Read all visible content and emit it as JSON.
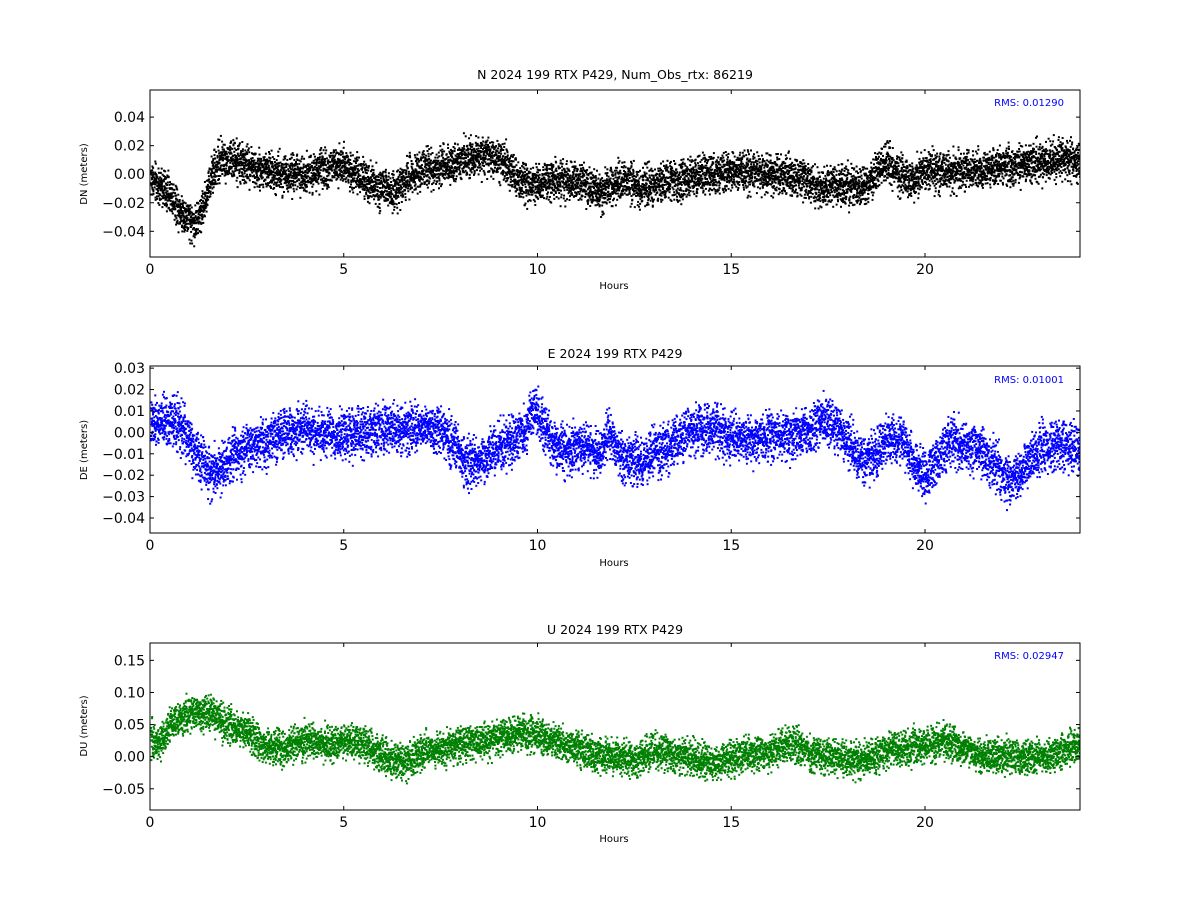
{
  "chart_data": [
    {
      "type": "scatter",
      "title": "N 2024 199 RTX  P429, Num_Obs_rtx: 86219",
      "xlabel": "Hours",
      "ylabel": "DN (meters)",
      "xlim": [
        0,
        24
      ],
      "ylim": [
        -0.058,
        0.059
      ],
      "xticks": [
        0,
        5,
        10,
        15,
        20
      ],
      "xtick_labels": [
        "0",
        "5",
        "10",
        "15",
        "20"
      ],
      "yticks": [
        -0.04,
        -0.02,
        0.0,
        0.02,
        0.04
      ],
      "ytick_labels": [
        "−0.04",
        "−0.02",
        "0.00",
        "0.02",
        "0.04"
      ],
      "color": "#000000",
      "annotation": "RMS:  0.01290",
      "grid": false,
      "series": [
        {
          "x": [
            0,
            0.25,
            0.5,
            0.75,
            1.0,
            1.15,
            1.35,
            1.6,
            1.8,
            2.0,
            2.3,
            2.6,
            3.0,
            3.5,
            4.0,
            4.5,
            4.8,
            5.0,
            5.3,
            5.6,
            6.0,
            6.25,
            6.6,
            7.0,
            7.5,
            8.0,
            8.5,
            8.9,
            9.2,
            9.5,
            9.8,
            10.0,
            10.2,
            10.5,
            11.0,
            11.3,
            11.6,
            12.0,
            12.3,
            12.6,
            13.0,
            13.5,
            14.0,
            14.5,
            15.0,
            15.5,
            16.0,
            16.5,
            17.0,
            17.3,
            17.6,
            18.0,
            18.5,
            18.8,
            19.0,
            19.3,
            19.6,
            20.0,
            20.5,
            21.0,
            21.5,
            22.0,
            22.5,
            23.0,
            23.3,
            23.6,
            24.0
          ],
          "y": [
            -0.003,
            -0.008,
            -0.014,
            -0.024,
            -0.032,
            -0.034,
            -0.022,
            0.003,
            0.011,
            0.01,
            0.008,
            0.006,
            0.003,
            0.001,
            0.001,
            0.004,
            0.008,
            0.006,
            0.001,
            -0.006,
            -0.009,
            -0.012,
            -0.002,
            0.003,
            0.007,
            0.011,
            0.014,
            0.012,
            0.006,
            -0.004,
            -0.008,
            -0.006,
            -0.004,
            -0.003,
            -0.005,
            -0.009,
            -0.012,
            -0.006,
            -0.003,
            -0.008,
            -0.005,
            -0.004,
            0.0,
            0.001,
            0.003,
            0.002,
            0.001,
            0.0,
            -0.004,
            -0.01,
            -0.007,
            -0.008,
            -0.006,
            0.004,
            0.008,
            0.002,
            -0.005,
            0.004,
            0.002,
            0.003,
            0.004,
            0.006,
            0.008,
            0.009,
            0.011,
            0.012,
            0.008
          ],
          "spread": 0.011
        }
      ]
    },
    {
      "type": "scatter",
      "title": "E 2024 199 RTX  P429",
      "xlabel": "Hours",
      "ylabel": "DE (meters)",
      "xlim": [
        0,
        24
      ],
      "ylim": [
        -0.047,
        0.031
      ],
      "xticks": [
        0,
        5,
        10,
        15,
        20
      ],
      "xtick_labels": [
        "0",
        "5",
        "10",
        "15",
        "20"
      ],
      "yticks": [
        -0.04,
        -0.03,
        -0.02,
        -0.01,
        0.0,
        0.01,
        0.02,
        0.03
      ],
      "ytick_labels": [
        "−0.04",
        "−0.03",
        "−0.02",
        "−0.01",
        "0.00",
        "0.01",
        "0.02",
        "0.03"
      ],
      "color": "#0000ff",
      "annotation": "RMS:  0.01001",
      "grid": false,
      "series": [
        {
          "x": [
            0,
            0.3,
            0.6,
            0.9,
            1.2,
            1.5,
            1.8,
            2.1,
            2.5,
            3.0,
            3.5,
            4.0,
            4.5,
            5.0,
            5.5,
            6.0,
            6.5,
            7.0,
            7.5,
            7.8,
            8.2,
            8.6,
            9.0,
            9.4,
            9.7,
            9.9,
            10.1,
            10.4,
            10.8,
            11.2,
            11.6,
            11.8,
            12.0,
            12.3,
            12.6,
            13.0,
            13.4,
            13.8,
            14.2,
            14.6,
            15.0,
            15.5,
            16.0,
            16.5,
            17.0,
            17.3,
            17.6,
            18.0,
            18.4,
            18.7,
            19.0,
            19.4,
            19.7,
            20.0,
            20.3,
            20.6,
            21.0,
            21.4,
            21.8,
            22.1,
            22.4,
            22.7,
            23.0,
            23.5,
            24.0
          ],
          "y": [
            0.003,
            0.006,
            0.006,
            0.0,
            -0.01,
            -0.018,
            -0.016,
            -0.01,
            -0.006,
            -0.004,
            0.0,
            0.002,
            -0.001,
            -0.001,
            0.0,
            0.002,
            0.002,
            0.003,
            0.002,
            -0.005,
            -0.014,
            -0.012,
            -0.006,
            -0.003,
            0.003,
            0.012,
            0.004,
            -0.006,
            -0.008,
            -0.005,
            -0.011,
            0.002,
            -0.008,
            -0.012,
            -0.014,
            -0.008,
            -0.006,
            0.0,
            0.002,
            0.001,
            -0.002,
            -0.003,
            -0.001,
            -0.001,
            0.002,
            0.006,
            0.005,
            -0.004,
            -0.014,
            -0.01,
            -0.002,
            -0.003,
            -0.015,
            -0.02,
            -0.012,
            -0.004,
            -0.006,
            -0.008,
            -0.014,
            -0.022,
            -0.02,
            -0.012,
            -0.006,
            -0.006,
            -0.008
          ],
          "spread": 0.009
        }
      ]
    },
    {
      "type": "scatter",
      "title": "U 2024 199 RTX  P429",
      "xlabel": "Hours",
      "ylabel": "DU (meters)",
      "xlim": [
        0,
        24
      ],
      "ylim": [
        -0.083,
        0.177
      ],
      "xticks": [
        0,
        5,
        10,
        15,
        20
      ],
      "xtick_labels": [
        "0",
        "5",
        "10",
        "15",
        "20"
      ],
      "yticks": [
        -0.05,
        0.0,
        0.05,
        0.1,
        0.15
      ],
      "ytick_labels": [
        "−0.05",
        "0.00",
        "0.05",
        "0.10",
        "0.15"
      ],
      "color": "#008000",
      "annotation": "RMS:  0.02947",
      "grid": false,
      "series": [
        {
          "x": [
            0,
            0.2,
            0.5,
            1.0,
            1.5,
            2.0,
            2.5,
            3.0,
            3.5,
            4.0,
            4.5,
            5.0,
            5.5,
            6.0,
            6.5,
            7.0,
            7.5,
            8.0,
            8.5,
            9.0,
            9.5,
            10.0,
            10.5,
            11.0,
            11.5,
            12.0,
            12.5,
            13.0,
            13.5,
            14.0,
            14.5,
            15.0,
            15.5,
            16.0,
            16.5,
            17.0,
            17.5,
            18.0,
            18.5,
            19.0,
            19.5,
            20.0,
            20.5,
            21.0,
            21.5,
            22.0,
            22.5,
            23.0,
            23.5,
            24.0
          ],
          "y": [
            0.03,
            0.02,
            0.05,
            0.07,
            0.07,
            0.05,
            0.04,
            0.015,
            0.015,
            0.025,
            0.02,
            0.025,
            0.02,
            0.005,
            -0.01,
            0.01,
            0.015,
            0.02,
            0.025,
            0.03,
            0.04,
            0.035,
            0.025,
            0.015,
            0.005,
            0.0,
            -0.005,
            0.01,
            0.005,
            0.0,
            -0.01,
            0.0,
            0.005,
            0.01,
            0.025,
            0.005,
            0.005,
            -0.005,
            0.0,
            0.01,
            0.015,
            0.02,
            0.025,
            0.015,
            0.0,
            0.005,
            0.0,
            0.0,
            0.01,
            0.02
          ],
          "spread": 0.022
        }
      ]
    }
  ]
}
